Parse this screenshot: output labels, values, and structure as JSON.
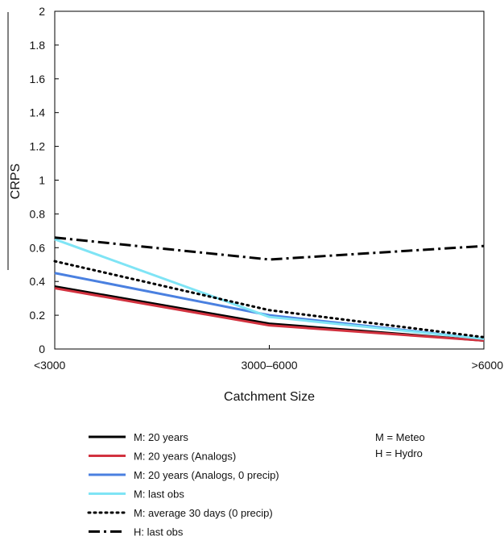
{
  "chart_data": {
    "type": "line",
    "xlabel": "Catchment Size",
    "ylabel": "CRPS",
    "categories": [
      "<3000",
      "3000–6000",
      ">6000"
    ],
    "ylim": [
      0,
      2
    ],
    "yticks": [
      0,
      0.2,
      0.4,
      0.6,
      0.8,
      1,
      1.2,
      1.4,
      1.6,
      1.8,
      2
    ],
    "ytick_labels": [
      "0",
      "0.2",
      "0.4",
      "0.6",
      "0.8",
      "1",
      "1.2",
      "1.4",
      "1.6",
      "1.8",
      "2"
    ],
    "grid": false,
    "legend_position": "bottom",
    "series": [
      {
        "name": "M: 20 years",
        "values": [
          0.37,
          0.15,
          0.05
        ],
        "color": "#000000",
        "dash": "solid"
      },
      {
        "name": "M: 20 years (Analogs)",
        "values": [
          0.36,
          0.14,
          0.05
        ],
        "color": "#d2323f",
        "dash": "solid"
      },
      {
        "name": "M: 20 years (Analogs, 0 precip)",
        "values": [
          0.45,
          0.2,
          0.06
        ],
        "color": "#4a80e0",
        "dash": "solid"
      },
      {
        "name": "M: last obs",
        "values": [
          0.65,
          0.19,
          0.06
        ],
        "color": "#7fe4f5",
        "dash": "solid"
      },
      {
        "name": "M: average 30 days (0 precip)",
        "values": [
          0.52,
          0.23,
          0.07
        ],
        "color": "#000000",
        "dash": "dotted"
      },
      {
        "name": "H: last obs",
        "values": [
          0.66,
          0.53,
          0.61
        ],
        "color": "#000000",
        "dash": "dashdot"
      }
    ],
    "notes": [
      "M = Meteo",
      "H = Hydro"
    ]
  }
}
